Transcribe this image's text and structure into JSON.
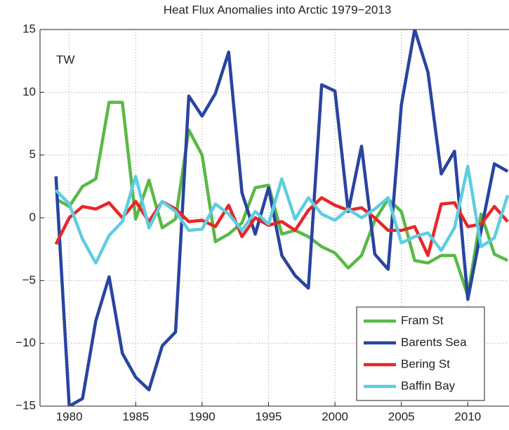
{
  "chart_data": {
    "type": "line",
    "title": "Heat Flux Anomalies into Arctic 1979−2013",
    "annotation": "TW",
    "x": [
      1979,
      1980,
      1981,
      1982,
      1983,
      1984,
      1985,
      1986,
      1987,
      1988,
      1989,
      1990,
      1991,
      1992,
      1993,
      1994,
      1995,
      1996,
      1997,
      1998,
      1999,
      2000,
      2001,
      2002,
      2003,
      2004,
      2005,
      2006,
      2007,
      2008,
      2009,
      2010,
      2011,
      2012,
      2013
    ],
    "series": [
      {
        "name": "Fram St",
        "color": "#5ab946",
        "values": [
          1.5,
          0.9,
          2.5,
          3.1,
          9.2,
          9.2,
          -0.1,
          3.0,
          -0.8,
          -0.1,
          7.0,
          5.0,
          -1.9,
          -1.3,
          -0.4,
          2.4,
          2.6,
          -1.3,
          -1.0,
          -1.5,
          -2.3,
          -2.8,
          -4.0,
          -3.0,
          -0.2,
          1.5,
          0.5,
          -3.4,
          -3.6,
          -3.0,
          -3.0,
          -6.2,
          0.3,
          -2.9,
          -3.4
        ]
      },
      {
        "name": "Barents Sea",
        "color": "#2944a0",
        "values": [
          3.3,
          -15,
          -14.4,
          -8.2,
          -4.7,
          -10.8,
          -12.7,
          -13.7,
          -10.2,
          -9.1,
          9.7,
          8.1,
          9.9,
          13.2,
          2.0,
          -1.3,
          2.4,
          -3.0,
          -4.6,
          -5.6,
          10.6,
          10.1,
          0.5,
          5.7,
          -2.9,
          -4.1,
          9.0,
          15.0,
          11.6,
          3.5,
          5.3,
          -6.5,
          -1.0,
          4.3,
          3.7
        ]
      },
      {
        "name": "Bering St",
        "color": "#e8262a",
        "values": [
          -2.1,
          0.0,
          0.9,
          0.7,
          1.2,
          0.0,
          1.3,
          -0.3,
          1.3,
          0.7,
          -0.3,
          -0.2,
          -0.7,
          1.0,
          -1.5,
          0.0,
          -0.6,
          -0.3,
          -1.0,
          0.6,
          1.6,
          1.0,
          0.6,
          0.8,
          0.0,
          -1.0,
          -1.0,
          -0.7,
          -3.0,
          1.1,
          1.2,
          -0.7,
          -0.5,
          0.9,
          -0.3
        ]
      },
      {
        "name": "Baffin Bay",
        "color": "#5fcde0",
        "values": [
          2.2,
          1.1,
          -1.7,
          -3.6,
          -1.4,
          -0.3,
          3.3,
          -0.8,
          1.3,
          0.5,
          -1.0,
          -0.9,
          1.1,
          0.3,
          -1.0,
          0.5,
          -0.5,
          3.1,
          -0.1,
          1.6,
          0.3,
          -0.2,
          0.7,
          0.0,
          0.7,
          1.6,
          -2.0,
          -1.5,
          -1.2,
          -2.6,
          -0.8,
          4.1,
          -2.3,
          -1.6,
          1.8
        ]
      }
    ],
    "xlim": [
      1977.8,
      2013.1
    ],
    "xticks": [
      1980,
      1985,
      1990,
      1995,
      2000,
      2005,
      2010
    ],
    "ylim": [
      -15,
      15
    ],
    "yticks": [
      {
        "value": -15,
        "label": "−15"
      },
      {
        "value": -10,
        "label": "−10"
      },
      {
        "value": -5,
        "label": "−5"
      },
      0,
      5,
      10,
      15
    ],
    "grid": true,
    "legend": "lower right"
  }
}
